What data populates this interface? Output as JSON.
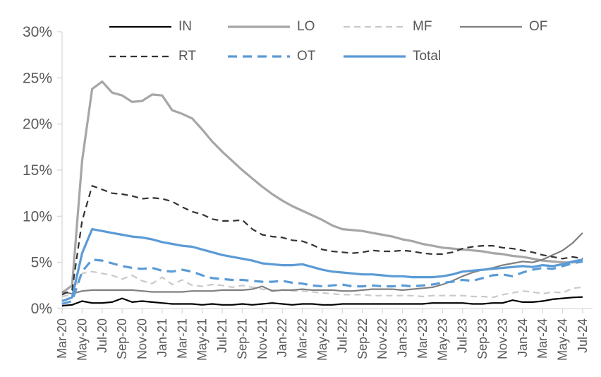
{
  "y_axis": {
    "tick_labels": [
      "0%",
      "5%",
      "10%",
      "15%",
      "20%",
      "25%",
      "30%"
    ]
  },
  "chart_data": {
    "type": "line",
    "title": "",
    "xlabel": "",
    "ylabel": "",
    "ylim": [
      0,
      30
    ],
    "y_ticks": [
      0,
      5,
      10,
      15,
      20,
      25,
      30
    ],
    "grid": false,
    "legend_position": "top",
    "axis_color": "#d9d9d9",
    "text_color": "#595959",
    "x": [
      "Mar-20",
      "Apr-20",
      "May-20",
      "Jun-20",
      "Jul-20",
      "Aug-20",
      "Sep-20",
      "Oct-20",
      "Nov-20",
      "Dec-20",
      "Jan-21",
      "Feb-21",
      "Mar-21",
      "Apr-21",
      "May-21",
      "Jun-21",
      "Jul-21",
      "Aug-21",
      "Sep-21",
      "Oct-21",
      "Nov-21",
      "Dec-21",
      "Jan-22",
      "Feb-22",
      "Mar-22",
      "Apr-22",
      "May-22",
      "Jun-22",
      "Jul-22",
      "Aug-22",
      "Sep-22",
      "Oct-22",
      "Nov-22",
      "Dec-22",
      "Jan-23",
      "Feb-23",
      "Mar-23",
      "Apr-23",
      "May-23",
      "Jun-23",
      "Jul-23",
      "Aug-23",
      "Sep-23",
      "Oct-23",
      "Nov-23",
      "Dec-23",
      "Jan-24",
      "Feb-24",
      "Mar-24",
      "Apr-24",
      "May-24",
      "Jun-24",
      "Jul-24"
    ],
    "x_tick_labels": [
      "Mar-20",
      "May-20",
      "Jul-20",
      "Sep-20",
      "Nov-20",
      "Jan-21",
      "Mar-21",
      "May-21",
      "Jul-21",
      "Sep-21",
      "Nov-21",
      "Jan-22",
      "Mar-22",
      "May-22",
      "Jul-22",
      "Sep-22",
      "Nov-22",
      "Jan-23",
      "Mar-23",
      "May-23",
      "Jul-23",
      "Sep-23",
      "Nov-23",
      "Jan-24",
      "Mar-24",
      "May-24",
      "Jul-24"
    ],
    "series": [
      {
        "name": "IN",
        "color": "#000000",
        "dash": "solid",
        "width": 2.2,
        "values": [
          0.3,
          0.4,
          0.8,
          0.6,
          0.6,
          0.7,
          1.1,
          0.7,
          0.8,
          0.7,
          0.6,
          0.5,
          0.5,
          0.5,
          0.4,
          0.5,
          0.4,
          0.4,
          0.5,
          0.4,
          0.5,
          0.6,
          0.5,
          0.4,
          0.5,
          0.5,
          0.4,
          0.4,
          0.5,
          0.5,
          0.5,
          0.5,
          0.5,
          0.5,
          0.5,
          0.5,
          0.5,
          0.6,
          0.6,
          0.6,
          0.6,
          0.5,
          0.5,
          0.6,
          0.6,
          0.9,
          0.7,
          0.7,
          0.8,
          1.0,
          1.1,
          1.2,
          1.25
        ]
      },
      {
        "name": "LO",
        "color": "#a6a6a6",
        "dash": "solid",
        "width": 3.2,
        "values": [
          1.7,
          2.5,
          16.0,
          23.8,
          24.6,
          23.4,
          23.1,
          22.4,
          22.5,
          23.2,
          23.1,
          21.5,
          21.1,
          20.6,
          19.4,
          18.1,
          17.0,
          16.0,
          15.0,
          14.1,
          13.2,
          12.4,
          11.7,
          11.1,
          10.6,
          10.1,
          9.6,
          9.0,
          8.6,
          8.5,
          8.4,
          8.2,
          8.0,
          7.8,
          7.5,
          7.3,
          7.0,
          6.8,
          6.6,
          6.5,
          6.4,
          6.3,
          6.2,
          6.0,
          5.9,
          5.7,
          5.6,
          5.4,
          5.2,
          5.1,
          5.0,
          5.0,
          5.1
        ]
      },
      {
        "name": "MF",
        "color": "#c9c9c9",
        "dash": "dashed",
        "width": 2.2,
        "values": [
          1.3,
          1.5,
          3.8,
          4.0,
          3.8,
          3.6,
          3.2,
          3.6,
          3.0,
          2.7,
          3.4,
          2.6,
          3.1,
          2.5,
          2.4,
          2.6,
          2.5,
          2.3,
          2.5,
          2.3,
          2.1,
          2.0,
          2.0,
          1.9,
          1.9,
          1.8,
          1.7,
          1.6,
          1.5,
          1.5,
          1.5,
          1.4,
          1.4,
          1.4,
          1.4,
          1.4,
          1.3,
          1.4,
          1.4,
          1.4,
          1.4,
          1.3,
          1.3,
          1.2,
          1.5,
          1.7,
          1.9,
          1.8,
          1.6,
          1.8,
          1.7,
          2.2,
          2.3
        ]
      },
      {
        "name": "OF",
        "color": "#7f7f7f",
        "dash": "solid",
        "width": 2.2,
        "values": [
          1.8,
          1.6,
          1.9,
          2.0,
          2.0,
          2.0,
          2.0,
          2.0,
          1.9,
          1.8,
          1.8,
          1.8,
          1.8,
          1.9,
          1.9,
          1.9,
          2.0,
          2.0,
          2.0,
          2.1,
          2.4,
          1.9,
          2.0,
          2.0,
          2.1,
          2.0,
          2.0,
          2.0,
          1.9,
          1.9,
          2.0,
          2.1,
          2.1,
          2.1,
          2.0,
          2.1,
          2.2,
          2.3,
          2.6,
          3.0,
          3.5,
          3.9,
          4.2,
          4.4,
          4.7,
          4.9,
          5.1,
          5.0,
          5.3,
          5.8,
          6.3,
          7.1,
          8.2
        ]
      },
      {
        "name": "RT",
        "color": "#333333",
        "dash": "dashed",
        "width": 2.2,
        "values": [
          1.5,
          2.0,
          9.5,
          13.3,
          12.9,
          12.5,
          12.4,
          12.2,
          11.9,
          12.0,
          11.9,
          11.6,
          11.0,
          10.5,
          10.2,
          9.7,
          9.5,
          9.5,
          9.6,
          8.6,
          8.0,
          7.8,
          7.7,
          7.4,
          7.3,
          6.9,
          6.4,
          6.2,
          6.1,
          6.0,
          6.1,
          6.3,
          6.2,
          6.2,
          6.3,
          6.2,
          6.0,
          5.9,
          5.9,
          6.1,
          6.5,
          6.7,
          6.8,
          6.8,
          6.6,
          6.5,
          6.3,
          6.1,
          5.8,
          5.6,
          5.4,
          5.6,
          5.4
        ]
      },
      {
        "name": "OT",
        "color": "#5b9bd5",
        "dash": "dashed",
        "width": 3.2,
        "values": [
          0.5,
          0.8,
          4.0,
          5.3,
          5.2,
          4.9,
          4.6,
          4.4,
          4.3,
          4.4,
          4.1,
          4.0,
          4.2,
          4.0,
          3.6,
          3.3,
          3.2,
          3.1,
          3.1,
          3.0,
          2.9,
          2.9,
          3.0,
          2.8,
          2.7,
          2.5,
          2.4,
          2.5,
          2.6,
          2.4,
          2.4,
          2.5,
          2.4,
          2.4,
          2.5,
          2.4,
          2.5,
          2.6,
          2.8,
          2.9,
          3.1,
          3.0,
          3.3,
          3.6,
          3.7,
          3.5,
          3.9,
          4.2,
          4.4,
          4.3,
          4.6,
          4.9,
          5.1
        ]
      },
      {
        "name": "Total",
        "color": "#5b9bd5",
        "dash": "solid",
        "width": 3.2,
        "values": [
          0.8,
          1.2,
          6.0,
          8.6,
          8.4,
          8.2,
          8.0,
          7.8,
          7.7,
          7.5,
          7.2,
          7.0,
          6.8,
          6.7,
          6.4,
          6.1,
          5.8,
          5.6,
          5.4,
          5.2,
          4.9,
          4.8,
          4.7,
          4.7,
          4.8,
          4.5,
          4.2,
          4.0,
          3.9,
          3.8,
          3.7,
          3.7,
          3.6,
          3.5,
          3.5,
          3.4,
          3.4,
          3.4,
          3.5,
          3.7,
          4.0,
          4.1,
          4.2,
          4.3,
          4.4,
          4.5,
          4.6,
          4.5,
          4.7,
          4.6,
          4.8,
          5.1,
          5.3
        ]
      }
    ]
  }
}
